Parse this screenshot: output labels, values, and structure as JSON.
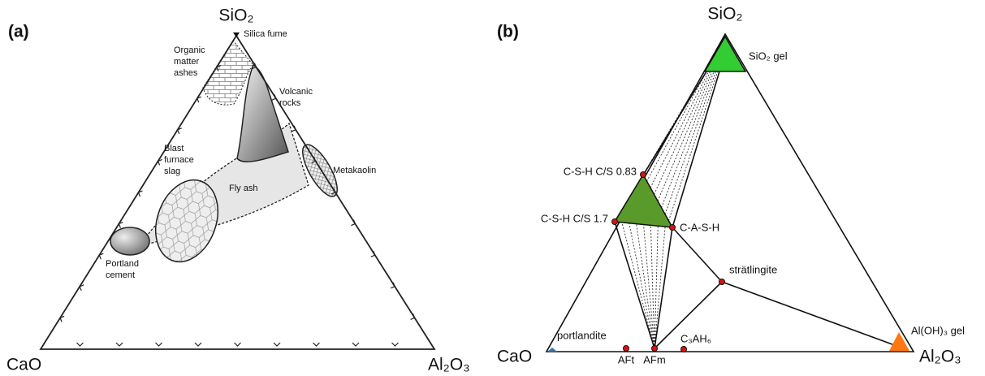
{
  "panel_a": {
    "label": "(a)",
    "vertices": {
      "top": "SiO₂",
      "left": "CaO",
      "right": "Al₂O₃"
    },
    "regions": [
      {
        "name": [
          "Silica fume"
        ]
      },
      {
        "name": [
          "Organic",
          "matter",
          "ashes"
        ]
      },
      {
        "name": [
          "Volcanic",
          "rocks"
        ]
      },
      {
        "name": [
          "Blast",
          "furnace",
          "slag"
        ]
      },
      {
        "name": [
          "Fly ash"
        ]
      },
      {
        "name": [
          "Metakaolin"
        ]
      },
      {
        "name": [
          "Portland",
          "cement"
        ]
      }
    ]
  },
  "panel_b": {
    "label": "(b)",
    "vertices": {
      "top": "SiO₂",
      "left": "CaO",
      "right": "Al₂O₃"
    },
    "phases": [
      "SiO₂ gel",
      "C-S-H C/S 0.83",
      "C-S-H C/S 1.7",
      "C-A-S-H",
      "strätlingite",
      "portlandite",
      "AFt",
      "AFm",
      "C₃AH₆",
      "Al(OH)₃ gel"
    ]
  }
}
